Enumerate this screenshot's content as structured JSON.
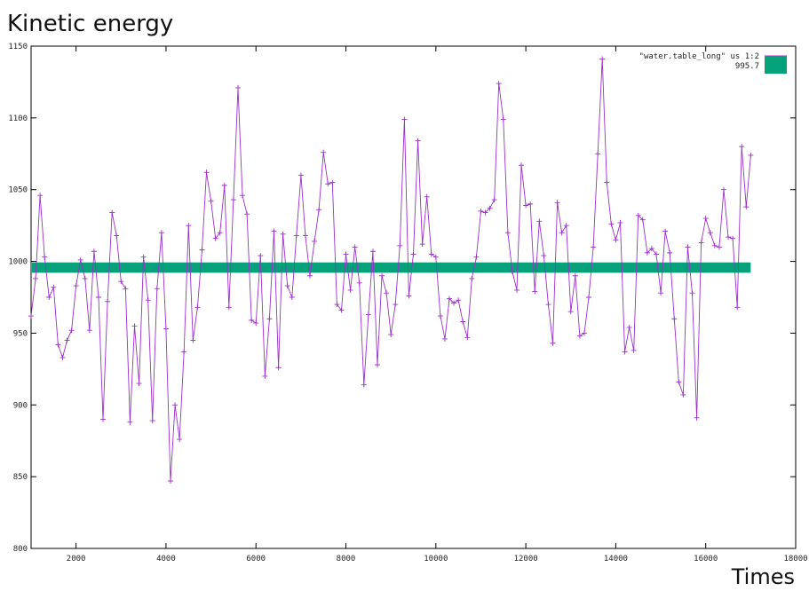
{
  "page": {
    "title": "Kinetic energy",
    "x_axis_title": "Times"
  },
  "colors": {
    "series": "#9b30c8",
    "band": "#05a17a",
    "frame": "#000000",
    "background": "#ffffff"
  },
  "legend": {
    "series_label": "\"water.table_long\" us 1:2",
    "band_label": "995.7",
    "position": "top-right"
  },
  "chart_data": {
    "type": "line",
    "title": "Kinetic energy",
    "xlabel": "Times",
    "ylabel": "",
    "xlim": [
      1000,
      18000
    ],
    "ylim": [
      800,
      1150
    ],
    "x_ticks": [
      2000,
      4000,
      6000,
      8000,
      10000,
      12000,
      14000,
      16000,
      18000
    ],
    "y_ticks": [
      800,
      850,
      900,
      950,
      1000,
      1050,
      1100,
      1150
    ],
    "grid": false,
    "series": [
      {
        "name": "\"water.table_long\" us 1:2",
        "marker": "+",
        "x": [
          1000,
          1100,
          1200,
          1300,
          1400,
          1500,
          1600,
          1700,
          1800,
          1900,
          2000,
          2100,
          2200,
          2300,
          2400,
          2500,
          2600,
          2700,
          2800,
          2900,
          3000,
          3100,
          3200,
          3300,
          3400,
          3500,
          3600,
          3700,
          3800,
          3900,
          4000,
          4100,
          4200,
          4300,
          4400,
          4500,
          4600,
          4700,
          4800,
          4900,
          5000,
          5100,
          5200,
          5300,
          5400,
          5500,
          5600,
          5700,
          5800,
          5900,
          6000,
          6100,
          6200,
          6300,
          6400,
          6500,
          6600,
          6700,
          6800,
          6900,
          7000,
          7100,
          7200,
          7300,
          7400,
          7500,
          7600,
          7700,
          7800,
          7900,
          8000,
          8100,
          8200,
          8300,
          8400,
          8500,
          8600,
          8700,
          8800,
          8900,
          9000,
          9100,
          9200,
          9300,
          9400,
          9500,
          9600,
          9700,
          9800,
          9900,
          10000,
          10100,
          10200,
          10300,
          10400,
          10500,
          10600,
          10700,
          10800,
          10900,
          11000,
          11100,
          11200,
          11300,
          11400,
          11500,
          11600,
          11700,
          11800,
          11900,
          12000,
          12100,
          12200,
          12300,
          12400,
          12500,
          12600,
          12700,
          12800,
          12900,
          13000,
          13100,
          13200,
          13300,
          13400,
          13500,
          13600,
          13700,
          13800,
          13900,
          14000,
          14100,
          14200,
          14300,
          14400,
          14500,
          14600,
          14700,
          14800,
          14900,
          15000,
          15100,
          15200,
          15300,
          15400,
          15500,
          15600,
          15700,
          15800,
          15900,
          16000,
          16100,
          16200,
          16300,
          16400,
          16500,
          16600,
          16700,
          16800,
          16900,
          17000
        ],
        "y": [
          962,
          988,
          1046,
          1003,
          975,
          982,
          942,
          933,
          945,
          952,
          983,
          1001,
          988,
          952,
          1007,
          975,
          890,
          972,
          1034,
          1018,
          986,
          981,
          888,
          955,
          915,
          1003,
          973,
          889,
          981,
          1020,
          953,
          847,
          900,
          876,
          937,
          1025,
          945,
          968,
          1008,
          1062,
          1042,
          1016,
          1020,
          1053,
          968,
          1043,
          1121,
          1046,
          1033,
          959,
          957,
          1004,
          920,
          960,
          1021,
          926,
          1019,
          983,
          975,
          1018,
          1060,
          1018,
          990,
          1014,
          1036,
          1076,
          1054,
          1055,
          970,
          966,
          1005,
          980,
          1010,
          985,
          914,
          963,
          1007,
          928,
          990,
          978,
          949,
          970,
          1011,
          1099,
          976,
          1005,
          1084,
          1012,
          1045,
          1005,
          1003,
          962,
          946,
          974,
          971,
          973,
          958,
          947,
          988,
          1003,
          1035,
          1034,
          1037,
          1043,
          1124,
          1099,
          1020,
          993,
          980,
          1067,
          1039,
          1040,
          979,
          1028,
          1004,
          970,
          943,
          1041,
          1020,
          1025,
          965,
          990,
          948,
          950,
          975,
          1010,
          1075,
          1141,
          1055,
          1026,
          1015,
          1027,
          937,
          954,
          938,
          1032,
          1029,
          1006,
          1009,
          1005,
          978,
          1021,
          1006,
          960,
          916,
          907,
          1010,
          978,
          891,
          1013,
          1030,
          1020,
          1011,
          1010,
          1050,
          1017,
          1016,
          968,
          1080,
          1038,
          1074
        ]
      }
    ],
    "reference_band": {
      "label": "995.7",
      "value": 995.7
    }
  }
}
